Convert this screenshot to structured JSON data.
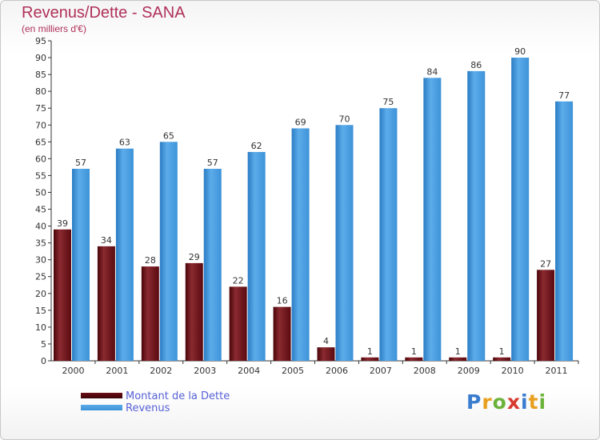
{
  "title": "Revenus/Dette - SANA",
  "subtitle": "(en milliers d'€)",
  "colors": {
    "title": "#b0315a",
    "debt": "#6e0d14",
    "revenue": "#3d93d8",
    "legend_text": "#5661d6"
  },
  "chart_data": {
    "type": "bar",
    "categories": [
      "2000",
      "2001",
      "2002",
      "2003",
      "2004",
      "2005",
      "2006",
      "2007",
      "2008",
      "2009",
      "2010",
      "2011"
    ],
    "series": [
      {
        "name": "Montant de la Dette",
        "values": [
          39,
          34,
          28,
          29,
          22,
          16,
          4,
          1,
          1,
          1,
          1,
          27
        ]
      },
      {
        "name": "Revenus",
        "values": [
          57,
          63,
          65,
          57,
          62,
          69,
          70,
          75,
          84,
          86,
          90,
          77
        ]
      }
    ],
    "ylim": [
      0,
      95
    ],
    "yticks": [
      0,
      5,
      10,
      15,
      20,
      25,
      30,
      35,
      40,
      45,
      50,
      55,
      60,
      65,
      70,
      75,
      80,
      85,
      90,
      95
    ],
    "grid": false,
    "legend_position": "bottom-left"
  },
  "logo": {
    "text": "Proxiti",
    "letter_colors": [
      "#3a7ccf",
      "#e8a020",
      "#6bb33a",
      "#d8392f",
      "#3a7ccf",
      "#e8a020",
      "#6bb33a"
    ]
  }
}
